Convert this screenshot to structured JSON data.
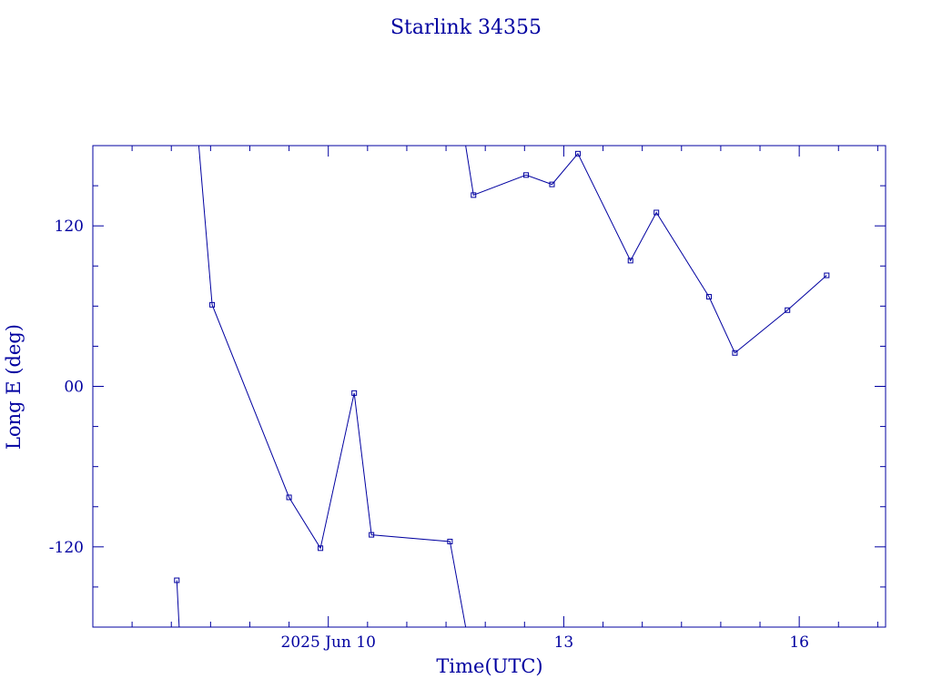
{
  "chart_data": {
    "type": "line",
    "title": "Starlink 34355",
    "xlabel": "Time(UTC)",
    "ylabel": "Long E (deg)",
    "x_ticks": [
      {
        "x": 10,
        "label": "2025 Jun 10"
      },
      {
        "x": 13,
        "label": "13"
      },
      {
        "x": 16,
        "label": "16"
      }
    ],
    "y_ticks": [
      {
        "y": 120,
        "label": "120"
      },
      {
        "y": 0,
        "label": "00"
      },
      {
        "y": -120,
        "label": "-120"
      }
    ],
    "xlim": [
      7.0,
      17.1
    ],
    "ylim": [
      -180,
      180
    ],
    "grid": false,
    "series": [
      {
        "values": [
          [
            8.07,
            -145
          ],
          [
            8.1,
            -180
          ],
          null,
          [
            8.35,
            180
          ],
          [
            8.52,
            61
          ],
          [
            9.5,
            -83
          ],
          [
            9.9,
            -121
          ],
          [
            10.33,
            -5
          ],
          [
            10.55,
            -111
          ],
          [
            11.55,
            -116
          ],
          [
            11.75,
            -180
          ],
          null,
          [
            11.75,
            180
          ],
          [
            11.85,
            143
          ],
          [
            12.52,
            158
          ],
          [
            12.85,
            151
          ],
          [
            13.18,
            174
          ],
          [
            13.85,
            94
          ],
          [
            14.18,
            130
          ],
          [
            14.85,
            67
          ],
          [
            15.18,
            25
          ],
          [
            15.85,
            57
          ],
          [
            16.35,
            83
          ]
        ],
        "marked_points": [
          [
            8.07,
            -145
          ],
          [
            8.52,
            61
          ],
          [
            9.5,
            -83
          ],
          [
            9.9,
            -121
          ],
          [
            10.33,
            -5
          ],
          [
            10.55,
            -111
          ],
          [
            11.55,
            -116
          ],
          [
            11.85,
            143
          ],
          [
            12.52,
            158
          ],
          [
            12.85,
            151
          ],
          [
            13.18,
            174
          ],
          [
            13.85,
            94
          ],
          [
            14.18,
            130
          ],
          [
            14.85,
            67
          ],
          [
            15.18,
            25
          ],
          [
            15.85,
            57
          ],
          [
            16.35,
            83
          ]
        ]
      }
    ]
  }
}
